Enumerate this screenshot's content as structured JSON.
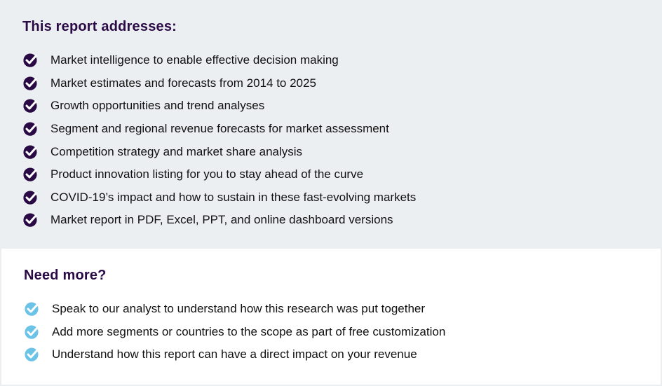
{
  "addresses": {
    "title": "This report addresses:",
    "icon": "check-circle-icon",
    "icon_color": "#2a0a45",
    "items": [
      "Market intelligence to enable effective decision making",
      "Market estimates and forecasts from 2014 to 2025",
      "Growth opportunities and trend analyses",
      "Segment and regional revenue forecasts for market assessment",
      "Competition strategy and market share analysis",
      "Product innovation listing for you to stay ahead of the curve",
      "COVID-19’s impact and how to sustain in these fast-evolving markets",
      "Market report in PDF, Excel, PPT, and online dashboard versions"
    ]
  },
  "need_more": {
    "title": "Need more?",
    "icon": "check-circle-icon",
    "icon_color": "#6cc3e8",
    "items": [
      "Speak to our analyst to understand how this research was put together",
      "Add more segments or countries to the scope as part of free customization",
      "Understand how this report can have a direct impact on your revenue"
    ]
  }
}
